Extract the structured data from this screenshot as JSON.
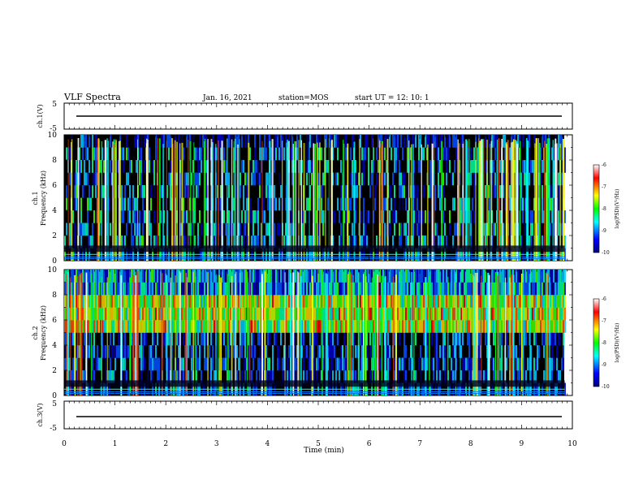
{
  "header": {
    "title": "VLF Spectra",
    "date": "Jan. 16, 2021",
    "station": "station=MOS",
    "start": "start UT =   12: 10: 1"
  },
  "chart_data": [
    {
      "type": "line",
      "name": "ch1-waveform",
      "ylabel": "ch.1(V)",
      "ylim": [
        -5,
        5
      ],
      "yticks": [
        "5",
        "-5"
      ],
      "xlim": [
        0,
        10
      ],
      "level": -1.2
    },
    {
      "type": "heatmap",
      "name": "ch1-spectrogram",
      "ylabel_top": "ch.1",
      "ylabel": "Frequency (kHz)",
      "ylim": [
        0,
        10
      ],
      "yticks": [
        "0",
        "2",
        "4",
        "6",
        "8",
        "10"
      ],
      "xlim": [
        0,
        10
      ],
      "data_extent_min": 9.85,
      "colorbar": {
        "label": "log(PSD)(V²/Hz)",
        "range": [
          -10,
          -6
        ],
        "ticks": [
          "-6",
          "-7",
          "-8",
          "-9",
          "-10"
        ]
      }
    },
    {
      "type": "heatmap",
      "name": "ch2-spectrogram",
      "ylabel_top": "ch.2",
      "ylabel": "Frequency (kHz)",
      "ylim": [
        0,
        10
      ],
      "yticks": [
        "0",
        "2",
        "4",
        "6",
        "8",
        "10"
      ],
      "xlim": [
        0,
        10
      ],
      "data_extent_min": 9.85,
      "colorbar": {
        "label": "log(PSD)(V²/Hz)",
        "range": [
          -10,
          -6
        ],
        "ticks": [
          "-6",
          "-7",
          "-8",
          "-9",
          "-10"
        ]
      }
    },
    {
      "type": "line",
      "name": "ch3-waveform",
      "ylabel": "ch.3(V)",
      "ylim": [
        -5,
        5
      ],
      "yticks": [
        "5",
        "-5"
      ],
      "xlim": [
        0,
        10
      ],
      "level": -1.2
    }
  ],
  "xaxis": {
    "label": "Time (min)",
    "ticks": [
      "0",
      "1",
      "2",
      "3",
      "4",
      "5",
      "6",
      "7",
      "8",
      "9",
      "10"
    ]
  },
  "colors": {
    "colormap": [
      "#00008b",
      "#0000ff",
      "#00ffff",
      "#00ff00",
      "#ffff00",
      "#ff0000",
      "#ffffff"
    ],
    "background_dark": "#000000"
  }
}
